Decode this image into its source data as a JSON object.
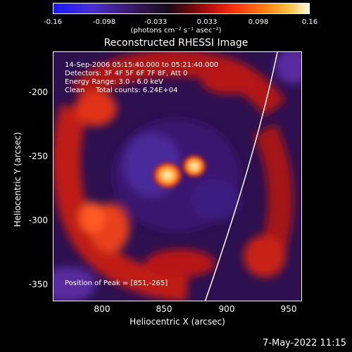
{
  "colorbar": {
    "ticks": [
      "-0.16",
      "-0.098",
      "-0.033",
      "0.033",
      "0.098",
      "0.16"
    ],
    "unit": "(photons cm⁻² s⁻¹ asec⁻²)"
  },
  "title": "Reconstructed RHESSI Image",
  "annotations": {
    "line1": "14-Sep-2006 05:15:40.000 to 05:21:40.000",
    "line2": "Detectors: 3F 4F 5F 6F 7F 8F, Att 0",
    "line3": "Energy Range: 3.0 - 6.0 keV",
    "line4": "Clean     Total counts: 6.24E+04",
    "peak": "Position of Peak = [851,-265]"
  },
  "axes": {
    "xlabel": "Heliocentric X (arcsec)",
    "ylabel": "Heliocentric Y (arcsec)",
    "xticks": [
      "800",
      "850",
      "900",
      "950"
    ],
    "yticks": [
      "-200",
      "-250",
      "-300",
      "-350"
    ]
  },
  "footer": "7-May-2022 11:15",
  "colors": {
    "background": "#000000",
    "text": "#ffffff"
  }
}
